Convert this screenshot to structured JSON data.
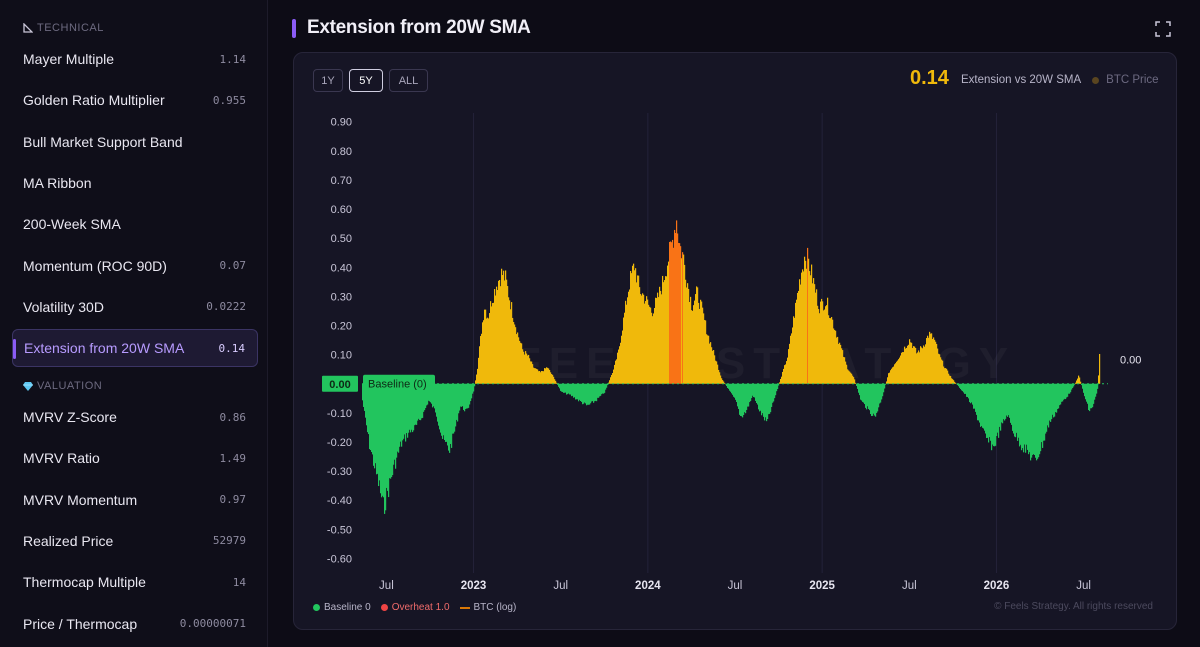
{
  "sidebar": {
    "technical_label": "TECHNICAL",
    "valuation_label": "VALUATION",
    "technical_items": [
      {
        "label": "Mayer Multiple",
        "value": "1.14"
      },
      {
        "label": "Golden Ratio Multiplier",
        "value": "0.955"
      },
      {
        "label": "Bull Market Support Band",
        "value": ""
      },
      {
        "label": "MA Ribbon",
        "value": ""
      },
      {
        "label": "200-Week SMA",
        "value": ""
      },
      {
        "label": "Momentum (ROC 90D)",
        "value": "0.07"
      },
      {
        "label": "Volatility 30D",
        "value": "0.0222"
      },
      {
        "label": "Extension from 20W SMA",
        "value": "0.14",
        "active": true
      }
    ],
    "valuation_items": [
      {
        "label": "MVRV Z-Score",
        "value": "0.86"
      },
      {
        "label": "MVRV Ratio",
        "value": "1.49"
      },
      {
        "label": "MVRV Momentum",
        "value": "0.97"
      },
      {
        "label": "Realized Price",
        "value": "52979"
      },
      {
        "label": "Thermocap Multiple",
        "value": "14"
      },
      {
        "label": "Price / Thermocap",
        "value": "0.00000071"
      }
    ]
  },
  "page_title": "Extension from 20W SMA",
  "range_buttons": [
    "1Y",
    "5Y",
    "ALL"
  ],
  "selected_range": "5Y",
  "current_value": "0.14",
  "legend_top": {
    "extension": "Extension vs 20W SMA",
    "btc": "BTC Price"
  },
  "legend_bottom": {
    "baseline": "Baseline 0",
    "overheat": "Overheat 1.0",
    "btc": "BTC (log)"
  },
  "baseline_label": "Baseline (0)",
  "baseline_value_label": "0.00",
  "right_value_label": "0.00",
  "watermark": "FEELS STRATEGY",
  "copyright": "© Feels Strategy. All rights reserved",
  "colors": {
    "positive": "#f0b90b",
    "negative": "#22c55e",
    "extreme": "#f97316",
    "accent": "#8b5cf6",
    "overheat": "#ef4444",
    "btc": "#d97706",
    "btc_dot": "#5a4520"
  },
  "chart_data": {
    "type": "area",
    "y_ticks": [
      "0.90",
      "0.80",
      "0.70",
      "0.60",
      "0.50",
      "0.40",
      "0.30",
      "0.20",
      "0.10",
      "0.00",
      "-0.10",
      "-0.20",
      "-0.30",
      "-0.40",
      "-0.50",
      "-0.60"
    ],
    "ylim": [
      -0.65,
      0.93
    ],
    "xlim": [
      2022.36,
      2026.64
    ],
    "x_ticks": [
      {
        "pos": 2022.5,
        "label": "Jul",
        "bold": false
      },
      {
        "pos": 2023.0,
        "label": "2023",
        "bold": true
      },
      {
        "pos": 2023.5,
        "label": "Jul",
        "bold": false
      },
      {
        "pos": 2024.0,
        "label": "2024",
        "bold": true
      },
      {
        "pos": 2024.5,
        "label": "Jul",
        "bold": false
      },
      {
        "pos": 2025.0,
        "label": "2025",
        "bold": true
      },
      {
        "pos": 2025.5,
        "label": "Jul",
        "bold": false
      },
      {
        "pos": 2026.0,
        "label": "2026",
        "bold": true
      },
      {
        "pos": 2026.5,
        "label": "Jul",
        "bold": false
      }
    ],
    "extreme_threshold": 0.45,
    "series": [
      {
        "x": [
          2022.36,
          2022.4,
          2022.43,
          2022.46,
          2022.48,
          2022.5,
          2022.54,
          2022.58,
          2022.62,
          2022.66,
          2022.7,
          2022.74,
          2022.78,
          2022.82,
          2022.86,
          2022.9,
          2022.92,
          2022.96,
          2023.0,
          2023.02,
          2023.04,
          2023.06,
          2023.08,
          2023.1,
          2023.13,
          2023.16,
          2023.18,
          2023.2,
          2023.22,
          2023.25,
          2023.28,
          2023.31,
          2023.34,
          2023.38,
          2023.42,
          2023.46,
          2023.5,
          2023.55,
          2023.6,
          2023.65,
          2023.7,
          2023.75,
          2023.8,
          2023.83,
          2023.86,
          2023.89,
          2023.92,
          2023.95,
          2023.98,
          2024.02,
          2024.05,
          2024.08,
          2024.11,
          2024.14,
          2024.16,
          2024.18,
          2024.2,
          2024.22,
          2024.25,
          2024.28,
          2024.31,
          2024.34,
          2024.38,
          2024.42,
          2024.46,
          2024.5,
          2024.53,
          2024.56,
          2024.6,
          2024.64,
          2024.68,
          2024.72,
          2024.76,
          2024.8,
          2024.84,
          2024.87,
          2024.9,
          2024.92,
          2024.95,
          2024.98,
          2025.02,
          2025.06,
          2025.1,
          2025.14,
          2025.18,
          2025.22,
          2025.27,
          2025.3,
          2025.34,
          2025.38,
          2025.42,
          2025.46,
          2025.5,
          2025.54,
          2025.58,
          2025.61,
          2025.64,
          2025.67,
          2025.7,
          2025.74,
          2025.78,
          2025.82,
          2025.86,
          2025.9,
          2025.94,
          2025.98,
          2026.02,
          2026.06,
          2026.1,
          2026.14,
          2026.18,
          2026.22,
          2026.26,
          2026.3,
          2026.34,
          2026.38,
          2026.41,
          2026.44,
          2026.47,
          2026.5,
          2026.53,
          2026.55,
          2026.57,
          2026.58,
          2026.59
        ],
        "values": [
          -0.06,
          -0.22,
          -0.3,
          -0.38,
          -0.45,
          -0.4,
          -0.3,
          -0.22,
          -0.18,
          -0.16,
          -0.12,
          -0.06,
          -0.1,
          -0.2,
          -0.24,
          -0.14,
          -0.08,
          -0.1,
          -0.02,
          0.06,
          0.18,
          0.28,
          0.24,
          0.3,
          0.36,
          0.4,
          0.38,
          0.32,
          0.26,
          0.18,
          0.12,
          0.1,
          0.06,
          0.04,
          0.06,
          0.02,
          -0.03,
          -0.04,
          -0.06,
          -0.08,
          -0.06,
          -0.03,
          0.05,
          0.12,
          0.24,
          0.36,
          0.43,
          0.34,
          0.31,
          0.26,
          0.3,
          0.36,
          0.44,
          0.52,
          0.6,
          0.5,
          0.46,
          0.38,
          0.28,
          0.33,
          0.26,
          0.18,
          0.1,
          0.02,
          -0.02,
          -0.06,
          -0.12,
          -0.1,
          -0.04,
          -0.1,
          -0.14,
          -0.06,
          0.02,
          0.1,
          0.26,
          0.38,
          0.47,
          0.44,
          0.36,
          0.28,
          0.3,
          0.22,
          0.14,
          0.06,
          0.02,
          -0.06,
          -0.1,
          -0.12,
          -0.05,
          0.04,
          0.08,
          0.12,
          0.16,
          0.11,
          0.14,
          0.18,
          0.16,
          0.1,
          0.06,
          0.02,
          -0.01,
          -0.04,
          -0.08,
          -0.14,
          -0.2,
          -0.23,
          -0.16,
          -0.11,
          -0.18,
          -0.22,
          -0.25,
          -0.28,
          -0.22,
          -0.14,
          -0.1,
          -0.06,
          -0.04,
          -0.01,
          0.03,
          -0.04,
          -0.1,
          -0.08,
          -0.04,
          -0.01,
          0.14
        ]
      }
    ]
  }
}
